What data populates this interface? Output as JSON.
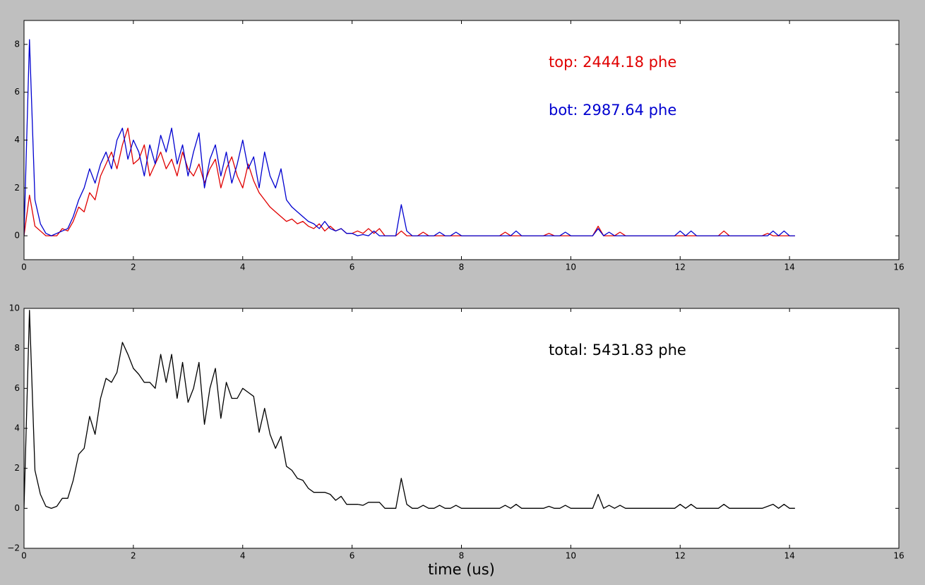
{
  "chart_data": [
    {
      "type": "line",
      "x": [
        0,
        0.1,
        0.2,
        0.3,
        0.4,
        0.5,
        0.6,
        0.7,
        0.8,
        0.9,
        1,
        1.1,
        1.2,
        1.3,
        1.4,
        1.5,
        1.6,
        1.7,
        1.8,
        1.9,
        2,
        2.1,
        2.2,
        2.3,
        2.4,
        2.5,
        2.6,
        2.7,
        2.8,
        2.9,
        3,
        3.1,
        3.2,
        3.3,
        3.4,
        3.5,
        3.6,
        3.7,
        3.8,
        3.9,
        4,
        4.1,
        4.2,
        4.3,
        4.4,
        4.5,
        4.6,
        4.7,
        4.8,
        4.9,
        5,
        5.1,
        5.2,
        5.3,
        5.4,
        5.5,
        5.6,
        5.7,
        5.8,
        5.9,
        6,
        6.1,
        6.2,
        6.3,
        6.4,
        6.5,
        6.6,
        6.7,
        6.8,
        6.9,
        7,
        7.1,
        7.2,
        7.3,
        7.4,
        7.5,
        7.6,
        7.7,
        7.8,
        7.9,
        8,
        8.1,
        8.2,
        8.3,
        8.4,
        8.5,
        8.6,
        8.7,
        8.8,
        8.9,
        9,
        9.1,
        9.2,
        9.3,
        9.4,
        9.5,
        9.6,
        9.7,
        9.8,
        9.9,
        10,
        10.1,
        10.2,
        10.3,
        10.4,
        10.5,
        10.6,
        10.7,
        10.8,
        10.9,
        11,
        11.1,
        11.2,
        11.3,
        11.4,
        11.5,
        11.6,
        11.7,
        11.8,
        11.9,
        12,
        12.1,
        12.2,
        12.3,
        12.4,
        12.5,
        12.6,
        12.7,
        12.8,
        12.9,
        13,
        13.1,
        13.2,
        13.3,
        13.4,
        13.5,
        13.6,
        13.7,
        13.8,
        13.9,
        14,
        14.1
      ],
      "series": [
        {
          "name": "top",
          "color": "#e00000",
          "values": [
            0,
            1.7,
            0.4,
            0.2,
            0,
            0,
            0,
            0.3,
            0.2,
            0.6,
            1.2,
            1.0,
            1.8,
            1.5,
            2.5,
            3.0,
            3.5,
            2.8,
            3.8,
            4.5,
            3.0,
            3.2,
            3.8,
            2.5,
            3.0,
            3.5,
            2.8,
            3.2,
            2.5,
            3.5,
            2.8,
            2.5,
            3.0,
            2.2,
            2.8,
            3.2,
            2.0,
            2.8,
            3.3,
            2.5,
            2.0,
            3.0,
            2.3,
            1.8,
            1.5,
            1.2,
            1.0,
            0.8,
            0.6,
            0.7,
            0.5,
            0.6,
            0.4,
            0.3,
            0.5,
            0.2,
            0.4,
            0.2,
            0.3,
            0.1,
            0.1,
            0.2,
            0.1,
            0.3,
            0.1,
            0.3,
            0,
            0,
            0,
            0.2,
            0,
            0,
            0,
            0.15,
            0,
            0,
            0,
            0,
            0,
            0,
            0,
            0,
            0,
            0,
            0,
            0,
            0,
            0,
            0.15,
            0,
            0,
            0,
            0,
            0,
            0,
            0,
            0.1,
            0,
            0,
            0,
            0,
            0,
            0,
            0,
            0,
            0.4,
            0,
            0,
            0,
            0.15,
            0,
            0,
            0,
            0,
            0,
            0,
            0,
            0,
            0,
            0,
            0,
            0,
            0,
            0,
            0,
            0,
            0,
            0,
            0.2,
            0,
            0,
            0,
            0,
            0,
            0,
            0,
            0.1,
            0,
            0,
            0,
            0,
            0
          ]
        },
        {
          "name": "bot",
          "color": "#0000d0",
          "values": [
            0,
            8.2,
            1.5,
            0.5,
            0.1,
            0,
            0.1,
            0.2,
            0.3,
            0.8,
            1.5,
            2.0,
            2.8,
            2.2,
            3.0,
            3.5,
            2.8,
            4.0,
            4.5,
            3.2,
            4.0,
            3.5,
            2.5,
            3.8,
            3.0,
            4.2,
            3.5,
            4.5,
            3.0,
            3.8,
            2.5,
            3.5,
            4.3,
            2.0,
            3.2,
            3.8,
            2.5,
            3.5,
            2.2,
            3.0,
            4.0,
            2.8,
            3.3,
            2.0,
            3.5,
            2.5,
            2.0,
            2.8,
            1.5,
            1.2,
            1.0,
            0.8,
            0.6,
            0.5,
            0.3,
            0.6,
            0.3,
            0.2,
            0.3,
            0.1,
            0.1,
            0,
            0.05,
            0,
            0.2,
            0,
            0,
            0,
            0,
            1.3,
            0.2,
            0,
            0,
            0,
            0,
            0,
            0.15,
            0,
            0,
            0.15,
            0,
            0,
            0,
            0,
            0,
            0,
            0,
            0,
            0,
            0,
            0.2,
            0,
            0,
            0,
            0,
            0,
            0,
            0,
            0,
            0.15,
            0,
            0,
            0,
            0,
            0,
            0.3,
            0,
            0.15,
            0,
            0,
            0,
            0,
            0,
            0,
            0,
            0,
            0,
            0,
            0,
            0,
            0.2,
            0,
            0.2,
            0,
            0,
            0,
            0,
            0,
            0,
            0,
            0,
            0,
            0,
            0,
            0,
            0,
            0,
            0.2,
            0,
            0.2,
            0,
            0
          ]
        }
      ],
      "annotations": [
        {
          "text": "top: 2444.18 phe",
          "color": "#e00000"
        },
        {
          "text": "bot: 2987.64 phe",
          "color": "#0000d0"
        }
      ],
      "xlim": [
        0,
        16
      ],
      "xticks": [
        0,
        2,
        4,
        6,
        8,
        10,
        12,
        14,
        16
      ],
      "ylim": [
        -1,
        9
      ],
      "yticks": [
        0,
        2,
        4,
        6,
        8
      ]
    },
    {
      "type": "line",
      "x": [
        0,
        0.1,
        0.2,
        0.3,
        0.4,
        0.5,
        0.6,
        0.7,
        0.8,
        0.9,
        1,
        1.1,
        1.2,
        1.3,
        1.4,
        1.5,
        1.6,
        1.7,
        1.8,
        1.9,
        2,
        2.1,
        2.2,
        2.3,
        2.4,
        2.5,
        2.6,
        2.7,
        2.8,
        2.9,
        3,
        3.1,
        3.2,
        3.3,
        3.4,
        3.5,
        3.6,
        3.7,
        3.8,
        3.9,
        4,
        4.1,
        4.2,
        4.3,
        4.4,
        4.5,
        4.6,
        4.7,
        4.8,
        4.9,
        5,
        5.1,
        5.2,
        5.3,
        5.4,
        5.5,
        5.6,
        5.7,
        5.8,
        5.9,
        6,
        6.1,
        6.2,
        6.3,
        6.4,
        6.5,
        6.6,
        6.7,
        6.8,
        6.9,
        7,
        7.1,
        7.2,
        7.3,
        7.4,
        7.5,
        7.6,
        7.7,
        7.8,
        7.9,
        8,
        8.1,
        8.2,
        8.3,
        8.4,
        8.5,
        8.6,
        8.7,
        8.8,
        8.9,
        9,
        9.1,
        9.2,
        9.3,
        9.4,
        9.5,
        9.6,
        9.7,
        9.8,
        9.9,
        10,
        10.1,
        10.2,
        10.3,
        10.4,
        10.5,
        10.6,
        10.7,
        10.8,
        10.9,
        11,
        11.1,
        11.2,
        11.3,
        11.4,
        11.5,
        11.6,
        11.7,
        11.8,
        11.9,
        12,
        12.1,
        12.2,
        12.3,
        12.4,
        12.5,
        12.6,
        12.7,
        12.8,
        12.9,
        13,
        13.1,
        13.2,
        13.3,
        13.4,
        13.5,
        13.6,
        13.7,
        13.8,
        13.9,
        14,
        14.1
      ],
      "series": [
        {
          "name": "total",
          "color": "#000000",
          "values": [
            0,
            9.9,
            1.9,
            0.7,
            0.1,
            0,
            0.1,
            0.5,
            0.5,
            1.4,
            2.7,
            3.0,
            4.6,
            3.7,
            5.5,
            6.5,
            6.3,
            6.8,
            8.3,
            7.7,
            7.0,
            6.7,
            6.3,
            6.3,
            6.0,
            7.7,
            6.3,
            7.7,
            5.5,
            7.3,
            5.3,
            6.0,
            7.3,
            4.2,
            6.0,
            7.0,
            4.5,
            6.3,
            5.5,
            5.5,
            6.0,
            5.8,
            5.6,
            3.8,
            5.0,
            3.7,
            3.0,
            3.6,
            2.1,
            1.9,
            1.5,
            1.4,
            1.0,
            0.8,
            0.8,
            0.8,
            0.7,
            0.4,
            0.6,
            0.2,
            0.2,
            0.2,
            0.15,
            0.3,
            0.3,
            0.3,
            0,
            0,
            0,
            1.5,
            0.2,
            0,
            0,
            0.15,
            0,
            0,
            0.15,
            0,
            0,
            0.15,
            0,
            0,
            0,
            0,
            0,
            0,
            0,
            0,
            0.15,
            0,
            0.2,
            0,
            0,
            0,
            0,
            0,
            0.1,
            0,
            0,
            0.15,
            0,
            0,
            0,
            0,
            0,
            0.7,
            0,
            0.15,
            0,
            0.15,
            0,
            0,
            0,
            0,
            0,
            0,
            0,
            0,
            0,
            0,
            0.2,
            0,
            0.2,
            0,
            0,
            0,
            0,
            0,
            0.2,
            0,
            0,
            0,
            0,
            0,
            0,
            0,
            0.1,
            0.2,
            0,
            0.2,
            0,
            0
          ]
        }
      ],
      "annotations": [
        {
          "text": "total: 5431.83 phe",
          "color": "#000000"
        }
      ],
      "xlabel": "time (us)",
      "xlim": [
        0,
        16
      ],
      "xticks": [
        0,
        2,
        4,
        6,
        8,
        10,
        12,
        14,
        16
      ],
      "ylim": [
        -2,
        10
      ],
      "yticks": [
        {
          "value": -2,
          "label": "−2"
        },
        0,
        2,
        4,
        6,
        8,
        10
      ]
    }
  ]
}
